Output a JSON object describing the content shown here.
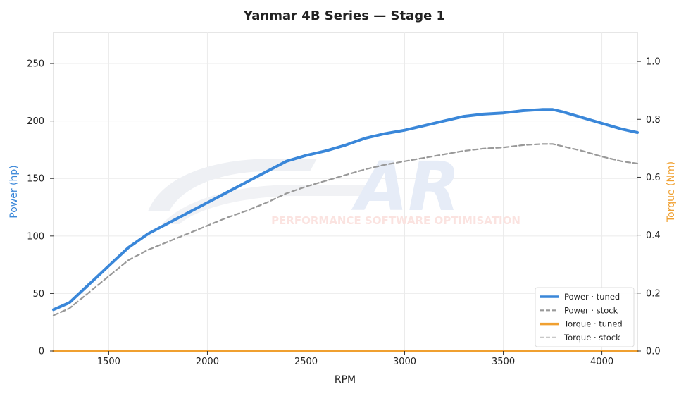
{
  "chart_data": {
    "type": "line",
    "title": "Yanmar 4B Series — Stage 1",
    "xlabel": "RPM",
    "ylabel_left": "Power (hp)",
    "ylabel_right": "Torque (Nm)",
    "xlim": [
      1220,
      4180
    ],
    "ylim_left": [
      0,
      277
    ],
    "ylim_right": [
      0,
      1.1
    ],
    "xticks": [
      1500,
      2000,
      2500,
      3000,
      3500,
      4000
    ],
    "yticks_left": [
      0,
      50,
      100,
      150,
      200,
      250
    ],
    "yticks_right": [
      0.0,
      0.2,
      0.4,
      0.6,
      0.8,
      1.0
    ],
    "grid": true,
    "legend_position": "bottom-right",
    "colors": {
      "power_tuned": "#3a87d9",
      "power_stock": "#999999",
      "torque_tuned": "#f0a030",
      "torque_stock": "#c8c8c8",
      "left_axis": "#3a87d9",
      "right_axis": "#f0a030"
    },
    "x": [
      1220,
      1300,
      1400,
      1500,
      1600,
      1700,
      1800,
      1900,
      2000,
      2100,
      2200,
      2300,
      2400,
      2500,
      2600,
      2700,
      2800,
      2900,
      3000,
      3100,
      3200,
      3300,
      3400,
      3500,
      3600,
      3700,
      3750,
      3800,
      3900,
      4000,
      4100,
      4180
    ],
    "series": [
      {
        "name": "Power · tuned",
        "axis": "left",
        "style": "solid",
        "values": [
          36,
          42,
          58,
          74,
          90,
          102,
          111,
          120,
          129,
          138,
          147,
          156,
          165,
          170,
          174,
          179,
          185,
          189,
          192,
          196,
          200,
          204,
          206,
          207,
          209,
          210,
          210,
          208,
          203,
          198,
          193,
          190
        ]
      },
      {
        "name": "Power · stock",
        "axis": "left",
        "style": "dashed",
        "values": [
          31,
          37,
          51,
          65,
          79,
          88,
          95,
          102,
          109,
          116,
          122,
          129,
          137,
          143,
          148,
          153,
          158,
          162,
          165,
          168,
          171,
          174,
          176,
          177,
          179,
          180,
          180,
          178,
          174,
          169,
          165,
          163
        ]
      },
      {
        "name": "Torque · tuned",
        "axis": "right",
        "style": "solid",
        "values": [
          0,
          0,
          0,
          0,
          0,
          0,
          0,
          0,
          0,
          0,
          0,
          0,
          0,
          0,
          0,
          0,
          0,
          0,
          0,
          0,
          0,
          0,
          0,
          0,
          0,
          0,
          0,
          0,
          0,
          0,
          0,
          0
        ]
      },
      {
        "name": "Torque · stock",
        "axis": "right",
        "style": "dashed",
        "values": [
          0,
          0,
          0,
          0,
          0,
          0,
          0,
          0,
          0,
          0,
          0,
          0,
          0,
          0,
          0,
          0,
          0,
          0,
          0,
          0,
          0,
          0,
          0,
          0,
          0,
          0,
          0,
          0,
          0,
          0,
          0,
          0
        ]
      }
    ]
  },
  "watermark": {
    "logo_text": "AR",
    "tagline": "PERFORMANCE SOFTWARE OPTIMISATION"
  }
}
